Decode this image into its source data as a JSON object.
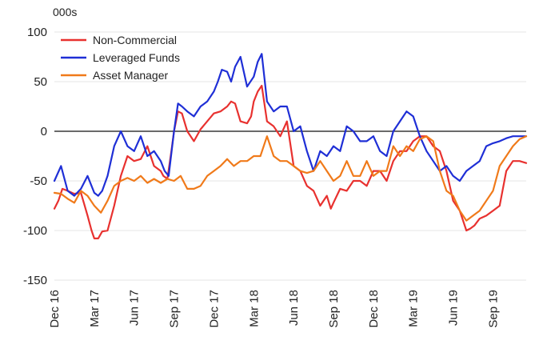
{
  "chart_data": {
    "type": "line",
    "title": "",
    "unit_label": "000s",
    "xlabel": "",
    "ylabel": "",
    "ylim": [
      -150,
      100
    ],
    "y_ticks": [
      100,
      50,
      0,
      -50,
      -100,
      -150
    ],
    "grid": true,
    "legend_position": "top-left",
    "x_tick_labels": [
      "Dec 16",
      "Mar 17",
      "Jun 17",
      "Sep 17",
      "Dec 17",
      "Mar 18",
      "Jun 18",
      "Sep 18",
      "Dec 18",
      "Mar 19",
      "Jun 19",
      "Sep 19"
    ],
    "x_tick_index": [
      0,
      3,
      6,
      9,
      12,
      15,
      18,
      21,
      24,
      27,
      30,
      33
    ],
    "x_range": [
      0,
      35.5
    ],
    "series": [
      {
        "name": "Non-Commercial",
        "color": "#e8312f",
        "x": [
          0,
          0.3,
          0.6,
          1,
          1.5,
          2,
          2.5,
          2.8,
          3,
          3.3,
          3.6,
          4,
          4.5,
          5,
          5.5,
          6,
          6.5,
          7,
          7.5,
          8,
          8.2,
          8.5,
          8.8,
          9,
          9.3,
          9.6,
          10,
          10.5,
          11,
          11.5,
          12,
          12.5,
          13,
          13.3,
          13.6,
          14,
          14.5,
          14.8,
          15,
          15.3,
          15.6,
          16,
          16.5,
          17,
          17.5,
          18,
          18.5,
          19,
          19.5,
          20,
          20.5,
          20.8,
          21,
          21.5,
          22,
          22.5,
          23,
          23.5,
          24,
          24.5,
          25,
          25.5,
          26,
          26.5,
          27,
          27.5,
          28,
          28.5,
          29,
          29.5,
          30,
          30.5,
          31,
          31.3,
          31.6,
          32,
          32.5,
          33,
          33.5,
          34,
          34.5,
          35,
          35.5
        ],
        "y": [
          -78,
          -70,
          -58,
          -60,
          -63,
          -62,
          -85,
          -100,
          -108,
          -108,
          -101,
          -100,
          -75,
          -45,
          -25,
          -30,
          -28,
          -15,
          -35,
          -40,
          -45,
          -48,
          -20,
          0,
          20,
          18,
          0,
          -10,
          2,
          10,
          18,
          20,
          25,
          30,
          28,
          10,
          8,
          15,
          30,
          40,
          46,
          10,
          5,
          -5,
          10,
          -35,
          -40,
          -55,
          -60,
          -75,
          -65,
          -78,
          -72,
          -58,
          -60,
          -50,
          -50,
          -55,
          -40,
          -40,
          -50,
          -30,
          -20,
          -20,
          -10,
          -5,
          -5,
          -15,
          -20,
          -40,
          -70,
          -80,
          -100,
          -98,
          -95,
          -88,
          -85,
          -80,
          -75,
          -40,
          -30,
          -30,
          -32
        ],
        "values": [
          -78,
          -70,
          -58,
          -60,
          -63,
          -62,
          -85,
          -100,
          -108,
          -108,
          -101,
          -100,
          -75,
          -45,
          -25,
          -30,
          -28,
          -15,
          -35,
          -40,
          -45,
          -48,
          -20,
          0,
          20,
          18,
          0,
          -10,
          2,
          10,
          18,
          20,
          25,
          30,
          28,
          10,
          8,
          15,
          30,
          40,
          46,
          10,
          5,
          -5,
          10,
          -35,
          -40,
          -55,
          -60,
          -75,
          -65,
          -78,
          -72,
          -58,
          -60,
          -50,
          -50,
          -55,
          -40,
          -40,
          -50,
          -30,
          -20,
          -20,
          -10,
          -5,
          -5,
          -15,
          -20,
          -40,
          -70,
          -80,
          -100,
          -98,
          -95,
          -88,
          -85,
          -80,
          -75,
          -40,
          -30,
          -30,
          -32
        ]
      },
      {
        "name": "Leveraged Funds",
        "color": "#1f2fd6",
        "x": [
          0,
          0.5,
          1,
          1.5,
          2,
          2.5,
          3,
          3.3,
          3.6,
          4,
          4.5,
          5,
          5.5,
          6,
          6.5,
          7,
          7.5,
          8,
          8.3,
          8.6,
          9,
          9.3,
          9.6,
          10,
          10.5,
          11,
          11.5,
          12,
          12.3,
          12.6,
          13,
          13.3,
          13.6,
          14,
          14.5,
          15,
          15.3,
          15.6,
          16,
          16.5,
          17,
          17.5,
          18,
          18.5,
          19,
          19.5,
          20,
          20.5,
          21,
          21.5,
          22,
          22.5,
          23,
          23.5,
          24,
          24.5,
          25,
          25.5,
          26,
          26.5,
          27,
          27.5,
          28,
          28.5,
          29,
          29.5,
          30,
          30.5,
          31,
          31.5,
          32,
          32.5,
          33,
          33.5,
          34,
          34.5,
          35,
          35.5
        ],
        "y": [
          -50,
          -35,
          -60,
          -65,
          -58,
          -45,
          -62,
          -65,
          -60,
          -45,
          -15,
          0,
          -15,
          -20,
          -5,
          -25,
          -20,
          -30,
          -40,
          -45,
          0,
          28,
          25,
          20,
          15,
          25,
          30,
          40,
          50,
          62,
          60,
          50,
          65,
          75,
          45,
          55,
          70,
          78,
          30,
          20,
          25,
          25,
          0,
          5,
          -20,
          -40,
          -20,
          -25,
          -15,
          -20,
          5,
          0,
          -10,
          -10,
          -5,
          -20,
          -25,
          0,
          10,
          20,
          15,
          -5,
          -20,
          -30,
          -40,
          -35,
          -45,
          -50,
          -40,
          -35,
          -30,
          -15,
          -12,
          -10,
          -7,
          -5,
          -5,
          -5
        ],
        "values": [
          -50,
          -35,
          -60,
          -65,
          -58,
          -45,
          -62,
          -65,
          -60,
          -45,
          -15,
          0,
          -15,
          -20,
          -5,
          -25,
          -20,
          -30,
          -40,
          -45,
          0,
          28,
          25,
          20,
          15,
          25,
          30,
          40,
          50,
          62,
          60,
          50,
          65,
          75,
          45,
          55,
          70,
          78,
          30,
          20,
          25,
          25,
          0,
          5,
          -20,
          -40,
          -20,
          -25,
          -15,
          -20,
          5,
          0,
          -10,
          -10,
          -5,
          -20,
          -25,
          0,
          10,
          20,
          15,
          -5,
          -20,
          -30,
          -40,
          -35,
          -45,
          -50,
          -40,
          -35,
          -30,
          -15,
          -12,
          -10,
          -7,
          -5,
          -5,
          -5
        ]
      },
      {
        "name": "Asset Manager",
        "color": "#f07a1a",
        "x": [
          0,
          0.5,
          1,
          1.5,
          2,
          2.5,
          3,
          3.5,
          4,
          4.5,
          5,
          5.5,
          6,
          6.5,
          7,
          7.5,
          8,
          8.5,
          9,
          9.5,
          10,
          10.5,
          11,
          11.5,
          12,
          12.5,
          13,
          13.5,
          14,
          14.5,
          15,
          15.5,
          16,
          16.5,
          17,
          17.5,
          18,
          18.5,
          19,
          19.5,
          20,
          20.5,
          21,
          21.5,
          22,
          22.5,
          23,
          23.5,
          24,
          24.5,
          25,
          25.5,
          26,
          26.5,
          27,
          27.5,
          28,
          28.5,
          29,
          29.5,
          30,
          30.5,
          31,
          31.5,
          32,
          32.5,
          33,
          33.5,
          34,
          34.5,
          35,
          35.5
        ],
        "y": [
          -62,
          -63,
          -68,
          -72,
          -60,
          -65,
          -75,
          -82,
          -70,
          -55,
          -50,
          -47,
          -50,
          -45,
          -52,
          -48,
          -52,
          -48,
          -50,
          -45,
          -58,
          -58,
          -55,
          -45,
          -40,
          -35,
          -28,
          -35,
          -30,
          -30,
          -25,
          -25,
          -5,
          -25,
          -30,
          -30,
          -35,
          -40,
          -42,
          -40,
          -30,
          -40,
          -50,
          -45,
          -30,
          -45,
          -45,
          -30,
          -45,
          -40,
          -40,
          -15,
          -25,
          -15,
          -20,
          -8,
          -5,
          -10,
          -40,
          -60,
          -65,
          -80,
          -90,
          -85,
          -80,
          -70,
          -60,
          -35,
          -25,
          -15,
          -8,
          -5
        ],
        "values": [
          -62,
          -63,
          -68,
          -72,
          -60,
          -65,
          -75,
          -82,
          -70,
          -55,
          -50,
          -47,
          -50,
          -45,
          -52,
          -48,
          -52,
          -48,
          -50,
          -45,
          -58,
          -58,
          -55,
          -45,
          -40,
          -35,
          -28,
          -35,
          -30,
          -30,
          -25,
          -25,
          -5,
          -25,
          -30,
          -30,
          -35,
          -40,
          -42,
          -40,
          -30,
          -40,
          -50,
          -45,
          -30,
          -45,
          -45,
          -30,
          -45,
          -40,
          -40,
          -15,
          -25,
          -15,
          -20,
          -8,
          -5,
          -10,
          -40,
          -60,
          -65,
          -80,
          -90,
          -85,
          -80,
          -70,
          -60,
          -35,
          -25,
          -15,
          -8,
          -5
        ]
      }
    ]
  }
}
